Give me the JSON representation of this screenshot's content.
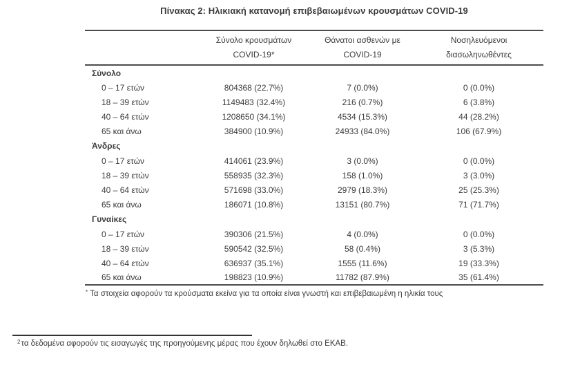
{
  "page": {
    "title": "Πίνακας 2: Ηλικιακή κατανομή επιβεβαιωμένων κρουσμάτων COVID-19"
  },
  "colors": {
    "text": "#3b3b3b",
    "table_border": "#4c4c4c",
    "background": "#ffffff"
  },
  "table": {
    "columns": [
      {
        "line1": "",
        "line2": ""
      },
      {
        "line1": "Σύνολο κρουσμάτων",
        "line2": "COVID-19*"
      },
      {
        "line1": "Θάνατοι ασθενών με",
        "line2": "COVID-19"
      },
      {
        "line1": "Νοσηλευόμενοι",
        "line2": "διασωληνωθέντες"
      }
    ],
    "sections": [
      {
        "label": "Σύνολο",
        "rows": [
          [
            "0 – 17 ετών",
            "804368 (22.7%)",
            "7 (0.0%)",
            "0 (0.0%)"
          ],
          [
            "18 – 39 ετών",
            "1149483 (32.4%)",
            "216 (0.7%)",
            "6 (3.8%)"
          ],
          [
            "40 – 64 ετών",
            "1208650 (34.1%)",
            "4534 (15.3%)",
            "44 (28.2%)"
          ],
          [
            "65 και άνω",
            "384900 (10.9%)",
            "24933 (84.0%)",
            "106 (67.9%)"
          ]
        ]
      },
      {
        "label": "Άνδρες",
        "rows": [
          [
            "0 – 17 ετών",
            "414061 (23.9%)",
            "3 (0.0%)",
            "0 (0.0%)"
          ],
          [
            "18 – 39 ετών",
            "558935 (32.3%)",
            "158 (1.0%)",
            "3 (3.0%)"
          ],
          [
            "40 – 64 ετών",
            "571698 (33.0%)",
            "2979 (18.3%)",
            "25 (25.3%)"
          ],
          [
            "65 και άνω",
            "186071 (10.8%)",
            "13151 (80.7%)",
            "71 (71.7%)"
          ]
        ]
      },
      {
        "label": "Γυναίκες",
        "rows": [
          [
            "0 – 17 ετών",
            "390306 (21.5%)",
            "4 (0.0%)",
            "0 (0.0%)"
          ],
          [
            "18 – 39 ετών",
            "590542 (32.5%)",
            "58 (0.4%)",
            "3 (5.3%)"
          ],
          [
            "40 – 64 ετών",
            "636937 (35.1%)",
            "1555 (11.6%)",
            "19 (33.3%)"
          ],
          [
            "65 και άνω",
            "198823 (10.9%)",
            "11782 (87.9%)",
            "35 (61.4%)"
          ]
        ]
      }
    ]
  },
  "footnotes": {
    "table_note_marker": "*",
    "table_note": "Τα στοιχεία αφορούν τα κρούσματα εκείνα για τα οποία είναι γνωστή και επιβεβαιωμένη η ηλικία τους",
    "page_note_marker": "2",
    "page_note": "τα δεδομένα αφορούν τις εισαγωγές της προηγούμενης μέρας που έχουν δηλωθεί στο ΕΚΑΒ."
  }
}
